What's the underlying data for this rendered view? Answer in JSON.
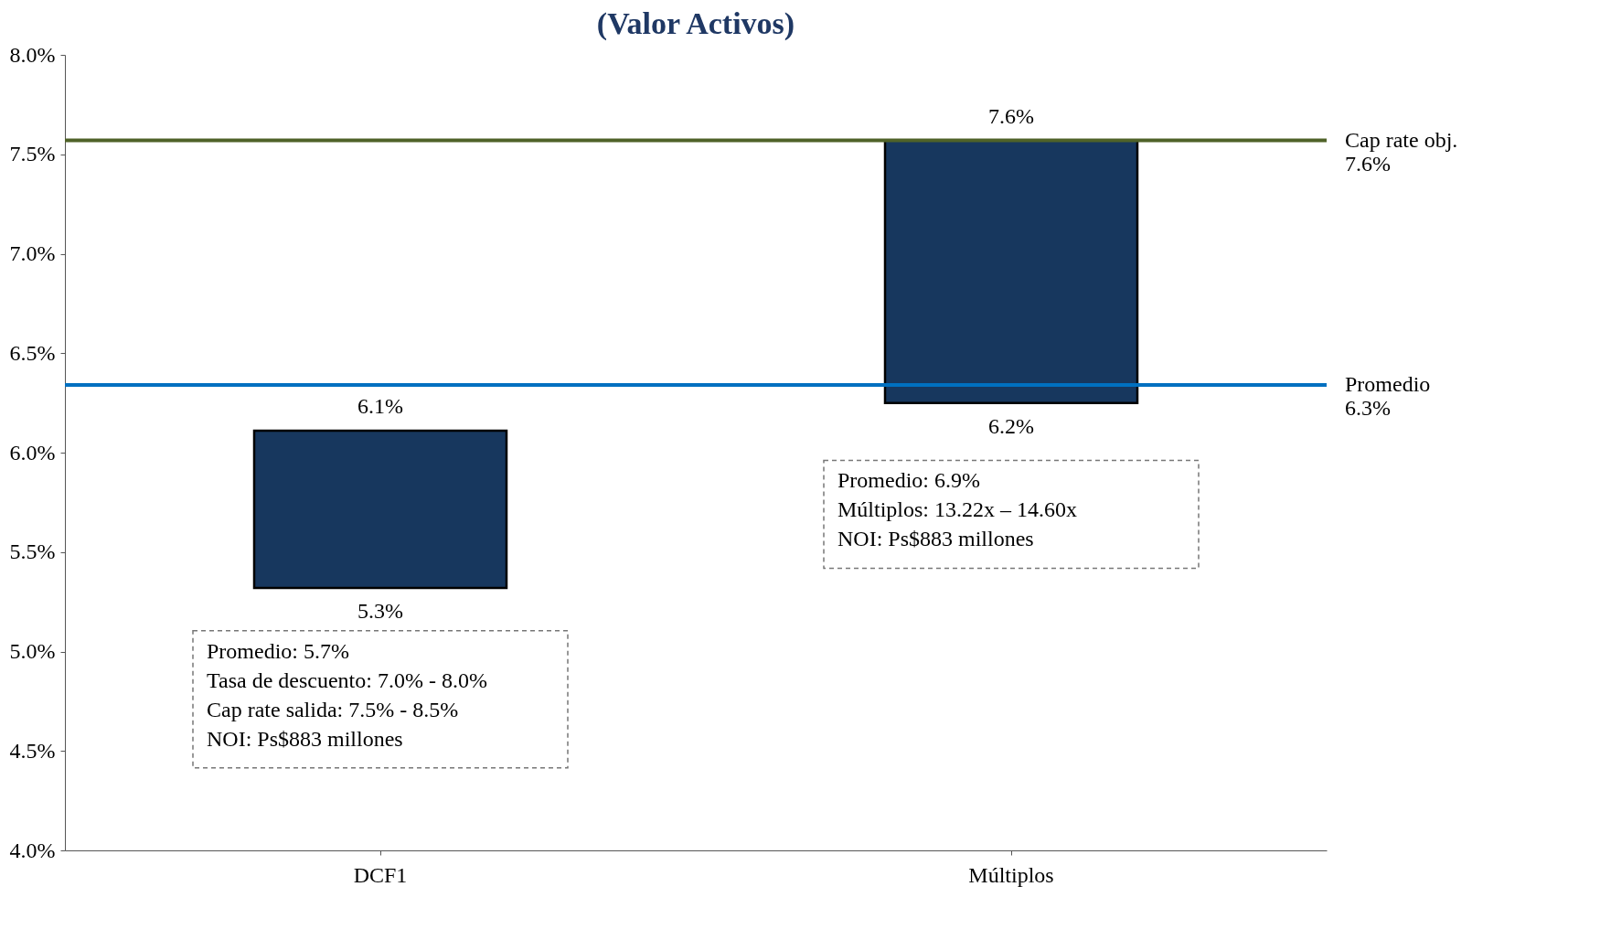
{
  "chart_data": {
    "type": "bar",
    "title": "(Valor Activos)",
    "categories": [
      "DCF1",
      "Múltiplos"
    ],
    "base": [
      5.32,
      6.25
    ],
    "values": [
      0.79,
      1.32
    ],
    "color": "#17375e",
    "ylim": [
      4,
      8
    ],
    "yticks": [
      {
        "value": 4,
        "label": "4.0%"
      },
      {
        "value": 4.5,
        "label": "4.5%"
      },
      {
        "value": 5,
        "label": "5.0%"
      },
      {
        "value": 5.5,
        "label": "5.5%"
      },
      {
        "value": 6,
        "label": "6.0%"
      },
      {
        "value": 6.5,
        "label": "6.5%"
      },
      {
        "value": 7,
        "label": "7.0%"
      },
      {
        "value": 7.5,
        "label": "7.5%"
      },
      {
        "value": 8,
        "label": "8.0%"
      }
    ],
    "ref_lines": [
      {
        "axis": "y",
        "value": 7.57,
        "label": "Cap rate obj.\n7.6%",
        "color": "#4f6228"
      },
      {
        "axis": "y",
        "value": 6.34,
        "label": "Promedio\n6.3%",
        "color": "#0070c0"
      }
    ],
    "annotations": [
      {
        "text": "6.1%",
        "x": "DCF1",
        "y": 6.11
      },
      {
        "text": "5.3%",
        "x": "DCF1",
        "y": 5.32
      },
      {
        "text": "7.6%",
        "x": "Múltiplos",
        "y": 7.57
      },
      {
        "text": "6.2%",
        "x": "Múltiplos",
        "y": 6.25
      },
      "Promedio: 5.7%\nTasa de descuento: 7.0% - 8.0%\nCap rate salida: 7.5% - 8.5%\nNOI: Ps$883 millones",
      "Promedio: 6.9%\nMúltiplos: 13.22x – 14.60x\nNOI: Ps$883 millones"
    ],
    "grid": false
  }
}
